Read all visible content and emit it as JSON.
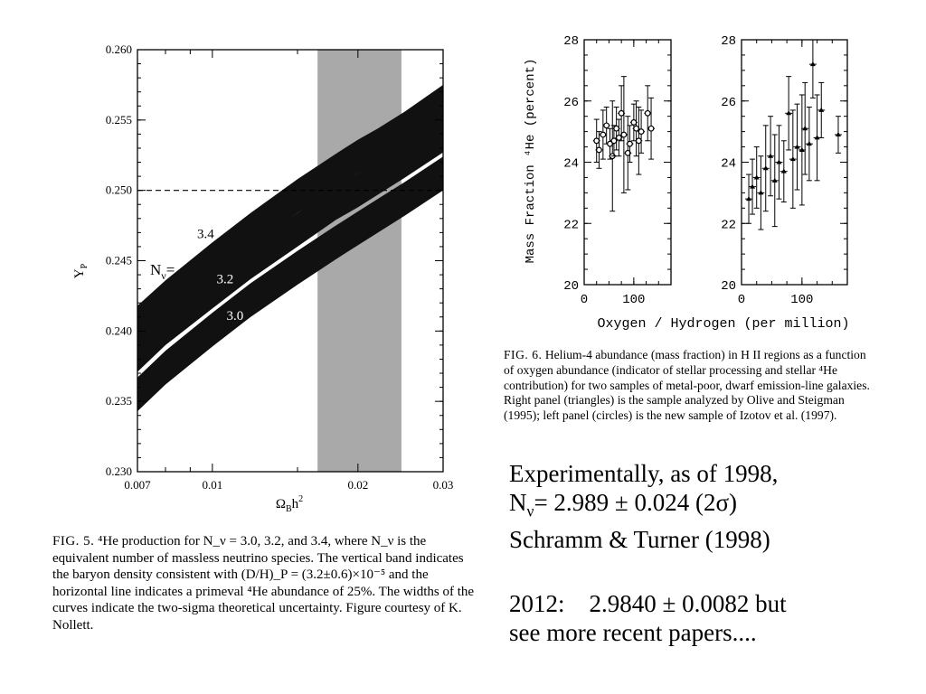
{
  "fig5": {
    "ylabel": "Y",
    "ylabel_sub": "P",
    "xlabel": "Ω",
    "xlabel_sub": "B",
    "xlabel_rest": "h",
    "xlabel_sup": "2",
    "nu_label": "N",
    "nu_sub": "ν",
    "nu_eq": "=",
    "caption": {
      "fig_label": "FIG. 5.",
      "text": "⁴He production for N_ν = 3.0, 3.2, and 3.4, where N_ν is the equivalent number of massless neutrino species. The vertical band indicates the baryon density consistent with (D/H)_P = (3.2±0.6)×10⁻⁵ and the horizontal line indicates a primeval ⁴He abundance of 25%. The widths of the curves indicate the two-sigma theoretical uncertainty. Figure courtesy of K. Nollett."
    }
  },
  "fig6": {
    "ylabel": "Mass Fraction ⁴He (percent)",
    "xlabel": "Oxygen / Hydrogen (per million)",
    "caption": {
      "fig_label": "FIG. 6.",
      "text": "Helium-4 abundance (mass fraction) in H II regions as a function of oxygen abundance (indicator of stellar processing and stellar ⁴He contribution) for two samples of metal-poor, dwarf emission-line galaxies. Right panel (triangles) is the sample analyzed by Olive and Steigman (1995); left panel (circles) is the new sample of Izotov et al. (1997)."
    }
  },
  "text_blocks": {
    "line1": "Experimentally, as of 1998,",
    "line2_n": "N",
    "line2_sub": "ν",
    "line2_rest": "= 2.989 ± 0.024 (2σ)",
    "line3": "Schramm & Turner (1998)",
    "line4": "2012:    2.9840 ± 0.0082 but",
    "line5": "see more recent papers...."
  },
  "chart_data": [
    {
      "type": "area",
      "xscale": "log",
      "xlim": [
        0.007,
        0.03
      ],
      "ylim": [
        0.23,
        0.26
      ],
      "xticks": [
        "0.007",
        "0.01",
        "0.02",
        "0.03"
      ],
      "xtick_values": [
        0.007,
        0.01,
        0.02,
        0.03
      ],
      "yticks": [
        "0.230",
        "0.235",
        "0.240",
        "0.245",
        "0.250",
        "0.255",
        "0.260"
      ],
      "ytick_values": [
        0.23,
        0.235,
        0.24,
        0.245,
        0.25,
        0.255,
        0.26
      ],
      "band": {
        "x": [
          0.0165,
          0.0246
        ],
        "color": "#a9a9a9"
      },
      "hline": {
        "y": 0.25,
        "style": "dashed"
      },
      "series": [
        {
          "name": "3.4",
          "x": [
            0.007,
            0.008,
            0.01,
            0.012,
            0.015,
            0.018,
            0.02,
            0.022,
            0.025,
            0.03
          ],
          "y": [
            0.2406,
            0.2424,
            0.2451,
            0.2472,
            0.2496,
            0.2514,
            0.2524,
            0.2532,
            0.2544,
            0.2563
          ]
        },
        {
          "name": "3.2",
          "x": [
            0.007,
            0.008,
            0.01,
            0.012,
            0.015,
            0.018,
            0.02,
            0.022,
            0.025,
            0.03
          ],
          "y": [
            0.2383,
            0.2402,
            0.2428,
            0.2449,
            0.2472,
            0.2491,
            0.25,
            0.2509,
            0.2521,
            0.2539
          ]
        },
        {
          "name": "3.0",
          "x": [
            0.007,
            0.008,
            0.01,
            0.012,
            0.015,
            0.018,
            0.02,
            0.022,
            0.025,
            0.03
          ],
          "y": [
            0.2355,
            0.2374,
            0.2401,
            0.2422,
            0.2445,
            0.2463,
            0.2473,
            0.2482,
            0.2494,
            0.2512
          ]
        }
      ],
      "band_halfwidth": 0.0012
    },
    {
      "type": "scatter",
      "panel": "left (circles)",
      "xlim": [
        0,
        175
      ],
      "ylim": [
        20,
        28
      ],
      "xticks": [
        0,
        100
      ],
      "yticks": [
        20,
        22,
        24,
        26,
        28
      ],
      "marker": "circle",
      "points": [
        {
          "x": 25,
          "y": 24.7,
          "yerr": 0.7
        },
        {
          "x": 30,
          "y": 24.4,
          "yerr": 0.6
        },
        {
          "x": 38,
          "y": 24.9,
          "yerr": 0.8
        },
        {
          "x": 45,
          "y": 25.2,
          "yerr": 0.6
        },
        {
          "x": 52,
          "y": 24.6,
          "yerr": 0.5
        },
        {
          "x": 57,
          "y": 24.2,
          "yerr": 1.8
        },
        {
          "x": 60,
          "y": 24.7,
          "yerr": 0.5
        },
        {
          "x": 65,
          "y": 25.1,
          "yerr": 0.7
        },
        {
          "x": 70,
          "y": 24.8,
          "yerr": 0.6
        },
        {
          "x": 75,
          "y": 25.6,
          "yerr": 0.9
        },
        {
          "x": 80,
          "y": 24.9,
          "yerr": 1.9
        },
        {
          "x": 88,
          "y": 24.3,
          "yerr": 1.2
        },
        {
          "x": 92,
          "y": 24.6,
          "yerr": 0.6
        },
        {
          "x": 100,
          "y": 25.3,
          "yerr": 0.6
        },
        {
          "x": 105,
          "y": 25.1,
          "yerr": 0.9
        },
        {
          "x": 110,
          "y": 24.7,
          "yerr": 1.1
        },
        {
          "x": 115,
          "y": 25.0,
          "yerr": 0.7
        },
        {
          "x": 128,
          "y": 25.6,
          "yerr": 0.9
        },
        {
          "x": 135,
          "y": 25.1,
          "yerr": 1.0
        }
      ]
    },
    {
      "type": "scatter",
      "panel": "right (triangles)",
      "xlim": [
        0,
        175
      ],
      "ylim": [
        20,
        28
      ],
      "xticks": [
        0,
        100
      ],
      "yticks": [
        20,
        22,
        24,
        26,
        28
      ],
      "marker": "triangle",
      "points": [
        {
          "x": 12,
          "y": 22.8,
          "yerr": 0.8
        },
        {
          "x": 18,
          "y": 23.2,
          "yerr": 0.9
        },
        {
          "x": 25,
          "y": 23.5,
          "yerr": 1.0
        },
        {
          "x": 32,
          "y": 23.0,
          "yerr": 1.2
        },
        {
          "x": 40,
          "y": 23.8,
          "yerr": 1.4
        },
        {
          "x": 48,
          "y": 24.2,
          "yerr": 1.3
        },
        {
          "x": 55,
          "y": 23.4,
          "yerr": 1.5
        },
        {
          "x": 62,
          "y": 24.0,
          "yerr": 1.2
        },
        {
          "x": 70,
          "y": 23.7,
          "yerr": 1.0
        },
        {
          "x": 78,
          "y": 25.6,
          "yerr": 1.2
        },
        {
          "x": 85,
          "y": 24.1,
          "yerr": 1.6
        },
        {
          "x": 92,
          "y": 24.5,
          "yerr": 1.4
        },
        {
          "x": 100,
          "y": 24.4,
          "yerr": 1.8
        },
        {
          "x": 105,
          "y": 25.1,
          "yerr": 1.5
        },
        {
          "x": 112,
          "y": 24.6,
          "yerr": 1.2
        },
        {
          "x": 118,
          "y": 27.2,
          "yerr": 1.1
        },
        {
          "x": 125,
          "y": 24.8,
          "yerr": 1.4
        },
        {
          "x": 132,
          "y": 25.7,
          "yerr": 0.9
        },
        {
          "x": 160,
          "y": 24.9,
          "yerr": 0.6
        }
      ]
    }
  ]
}
